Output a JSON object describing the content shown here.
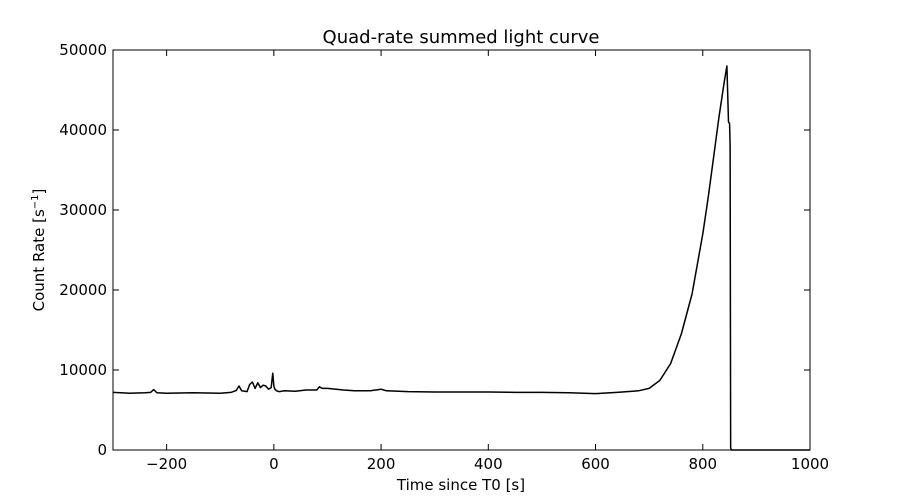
{
  "chart_data": {
    "type": "line",
    "title": "Quad-rate summed light curve",
    "xlabel": "Time since T0 [s]",
    "ylabel": "Count Rate [s",
    "ylabel_superscript": "−1",
    "ylabel_suffix": "]",
    "xlim": [
      -300,
      1000
    ],
    "ylim": [
      0,
      50000
    ],
    "x_ticks": [
      -200,
      0,
      200,
      400,
      600,
      800,
      1000
    ],
    "y_ticks": [
      0,
      10000,
      20000,
      30000,
      40000,
      50000
    ],
    "x_tick_labels": [
      "−200",
      "0",
      "200",
      "400",
      "600",
      "800",
      "1000"
    ],
    "y_tick_labels": [
      "0",
      "10000",
      "20000",
      "30000",
      "40000",
      "50000"
    ],
    "grid": false,
    "line_color": "#000000",
    "series": [
      {
        "x": [
          -300,
          -270,
          -240,
          -230,
          -224,
          -218,
          -200,
          -150,
          -100,
          -80,
          -70,
          -65,
          -60,
          -50,
          -45,
          -40,
          -35,
          -30,
          -25,
          -20,
          -15,
          -10,
          -5,
          -2,
          0,
          2,
          5,
          10,
          20,
          40,
          60,
          80,
          85,
          90,
          100,
          130,
          150,
          180,
          200,
          210,
          250,
          300,
          350,
          400,
          450,
          500,
          550,
          600,
          640,
          680,
          700,
          720,
          740,
          760,
          780,
          800,
          810,
          820,
          830,
          840,
          845,
          848,
          850,
          851,
          852,
          853,
          860,
          900,
          950,
          1000
        ],
        "y": [
          7200,
          7100,
          7150,
          7200,
          7550,
          7150,
          7100,
          7150,
          7100,
          7200,
          7450,
          8000,
          7400,
          7300,
          8200,
          8500,
          7700,
          8400,
          7800,
          8100,
          8000,
          7600,
          7800,
          9600,
          8000,
          7600,
          7400,
          7300,
          7400,
          7350,
          7500,
          7500,
          7900,
          7700,
          7700,
          7500,
          7400,
          7400,
          7600,
          7400,
          7300,
          7250,
          7250,
          7250,
          7200,
          7200,
          7150,
          7050,
          7200,
          7400,
          7700,
          8700,
          10800,
          14500,
          19500,
          27000,
          31500,
          36500,
          41500,
          46000,
          48000,
          41000,
          40800,
          38000,
          300,
          0,
          0,
          0,
          0,
          0
        ]
      }
    ]
  }
}
